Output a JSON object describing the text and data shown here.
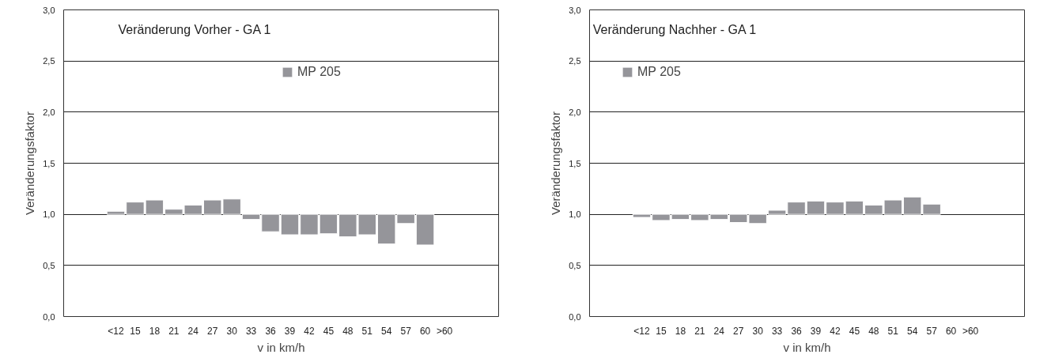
{
  "chart_data": [
    {
      "type": "bar",
      "title": "Veränderung Vorher - GA 1",
      "xlabel": "v in km/h",
      "ylabel": "Veränderungsfaktor",
      "categories": [
        "<12",
        "15",
        "18",
        "21",
        "24",
        "27",
        "30",
        "33",
        "36",
        "39",
        "42",
        "45",
        "48",
        "51",
        "54",
        "57",
        "60",
        ">60"
      ],
      "series": [
        {
          "name": "MP 205",
          "color": "#95959a",
          "values": [
            0.03,
            0.12,
            0.14,
            0.05,
            0.09,
            0.14,
            0.15,
            -0.05,
            -0.17,
            -0.2,
            -0.2,
            -0.19,
            -0.22,
            -0.2,
            -0.29,
            -0.09,
            -0.3,
            null
          ],
          "base": [
            1,
            1,
            1,
            1,
            1,
            1,
            1,
            1,
            1,
            1,
            1,
            1,
            1,
            1,
            1,
            1,
            1,
            null
          ]
        }
      ],
      "ylim": [
        0,
        3
      ],
      "yticks": [
        {
          "value": 0,
          "label": "0,0"
        },
        {
          "value": 0.5,
          "label": "0,5"
        },
        {
          "value": 1,
          "label": "1,0"
        },
        {
          "value": 1.5,
          "label": "1,5"
        },
        {
          "value": 2,
          "label": "2,0"
        },
        {
          "value": 2.5,
          "label": "2,5"
        },
        {
          "value": 3,
          "label": "3,0"
        }
      ],
      "grid": "y",
      "legend": "top right"
    },
    {
      "type": "bar",
      "title": "Veränderung Nachher - GA 1",
      "xlabel": "v in km/h",
      "ylabel": "Veränderungsfaktor",
      "categories": [
        "<12",
        "15",
        "18",
        "21",
        "24",
        "27",
        "30",
        "33",
        "36",
        "39",
        "42",
        "45",
        "48",
        "51",
        "54",
        "57",
        "60",
        ">60"
      ],
      "series": [
        {
          "name": "MP 205",
          "color": "#95959a",
          "values": [
            -0.03,
            -0.06,
            -0.05,
            -0.06,
            -0.05,
            -0.08,
            -0.09,
            0.04,
            0.12,
            0.13,
            0.12,
            0.13,
            0.09,
            0.14,
            0.17,
            0.1,
            null,
            null
          ],
          "base": [
            1,
            1,
            1,
            1,
            1,
            1,
            1,
            1,
            1,
            1,
            1,
            1,
            1,
            1,
            1,
            1,
            null,
            null
          ]
        }
      ],
      "ylim": [
        0,
        3
      ],
      "yticks": [
        {
          "value": 0,
          "label": "0,0"
        },
        {
          "value": 0.5,
          "label": "0,5"
        },
        {
          "value": 1,
          "label": "1,0"
        },
        {
          "value": 1.5,
          "label": "1,5"
        },
        {
          "value": 2,
          "label": "2,0"
        },
        {
          "value": 2.5,
          "label": "2,5"
        },
        {
          "value": 3,
          "label": "3,0"
        }
      ],
      "grid": "y",
      "legend": "top left"
    }
  ]
}
